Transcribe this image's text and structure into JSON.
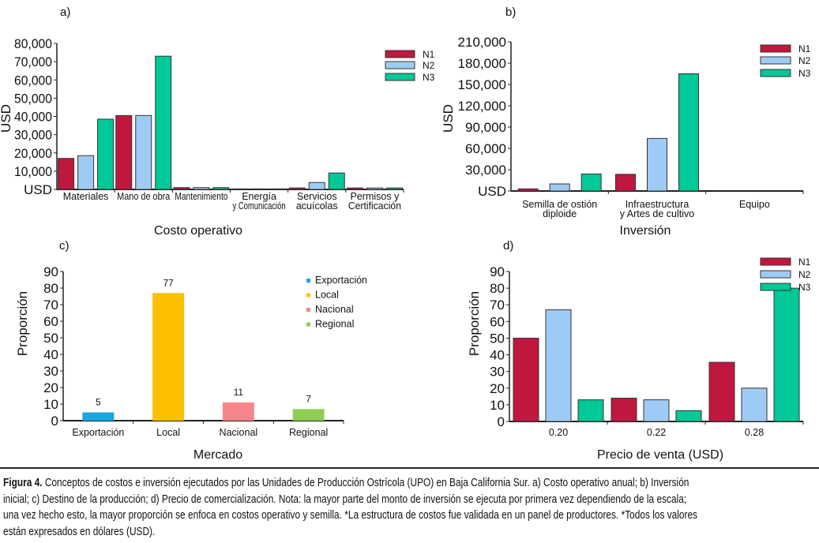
{
  "series_colors": {
    "N1": "#c0173f",
    "N2": "#9ecbf5",
    "N3": "#00c896"
  },
  "chart_data": [
    {
      "id": "a",
      "panel_label": "a)",
      "type": "bar",
      "title": "",
      "xlabel": "Costo operativo",
      "ylabel": "USD",
      "ylim": [
        0,
        80000
      ],
      "yticks": [
        "USD",
        "10,000",
        "20,000",
        "30,000",
        "40,000",
        "50,000",
        "60,000",
        "70,000",
        "80,000"
      ],
      "categories": [
        [
          "Materiales"
        ],
        [
          "Mano de obra"
        ],
        [
          "Mantenimiento"
        ],
        [
          "Energía",
          "y Comunicación"
        ],
        [
          "Servicios",
          "acuícolas"
        ],
        [
          "Permisos y",
          "Certificación"
        ]
      ],
      "legend": "top-right",
      "series": [
        {
          "name": "N1",
          "values": [
            17000,
            40500,
            1000,
            300,
            800,
            800
          ]
        },
        {
          "name": "N2",
          "values": [
            18500,
            40500,
            1000,
            300,
            3800,
            800
          ]
        },
        {
          "name": "N3",
          "values": [
            38500,
            73000,
            1000,
            300,
            9000,
            800
          ]
        }
      ]
    },
    {
      "id": "b",
      "panel_label": "b)",
      "type": "bar",
      "title": "",
      "xlabel": "Inversión",
      "ylabel": "USD",
      "ylim": [
        0,
        210000
      ],
      "yticks": [
        "USD",
        "30,000",
        "60,000",
        "90,000",
        "120,000",
        "150,000",
        "180,000",
        "210,000"
      ],
      "categories": [
        [
          "Semilla de ostión",
          "diploide"
        ],
        [
          "Infraestructura",
          "y Artes de cultivo"
        ],
        [
          "Equipo"
        ]
      ],
      "legend": "top-right",
      "series": [
        {
          "name": "N1",
          "values": [
            3000,
            23500,
            0
          ]
        },
        {
          "name": "N2",
          "values": [
            10000,
            74000,
            0
          ]
        },
        {
          "name": "N3",
          "values": [
            24000,
            165000,
            0
          ]
        }
      ]
    },
    {
      "id": "c",
      "panel_label": "c)",
      "type": "bar",
      "title": "",
      "xlabel": "Mercado",
      "ylabel": "Proporción",
      "ylim": [
        0,
        90
      ],
      "yticks": [
        "0",
        "10",
        "20",
        "30",
        "40",
        "50",
        "60",
        "70",
        "80",
        "90"
      ],
      "categories": [
        [
          "Exportación"
        ],
        [
          "Local"
        ],
        [
          "Nacional"
        ],
        [
          "Regional"
        ]
      ],
      "values": [
        5,
        77,
        11,
        7
      ],
      "data_labels": [
        "5",
        "77",
        "11",
        "7"
      ],
      "colors": [
        "#1aa6e0",
        "#fbbf00",
        "#f7868a",
        "#8fcd52"
      ],
      "legend_entries": [
        "Exportación",
        "Local",
        "Nacional",
        "Regional"
      ],
      "legend": "top-right"
    },
    {
      "id": "d",
      "panel_label": "d)",
      "type": "bar",
      "title": "",
      "xlabel": "Precio de venta (USD)",
      "ylabel": "Proporción",
      "ylim": [
        0,
        90
      ],
      "yticks": [
        "0",
        "10",
        "20",
        "30",
        "40",
        "50",
        "60",
        "70",
        "80",
        "90"
      ],
      "categories": [
        [
          "0.20"
        ],
        [
          "0.22"
        ],
        [
          "0.28"
        ]
      ],
      "legend": "top-right",
      "series": [
        {
          "name": "N1",
          "values": [
            50,
            14,
            35.5
          ]
        },
        {
          "name": "N2",
          "values": [
            67,
            13,
            20
          ]
        },
        {
          "name": "N3",
          "values": [
            13,
            6.5,
            80
          ]
        }
      ]
    }
  ],
  "caption": {
    "label": "Figura 4.",
    "lines": [
      " Conceptos de costos e inversión ejecutados por las Unidades de Producción Ostrícola (UPO) en Baja California Sur. a) Costo operativo anual; b) Inversión",
      "inicial; c) Destino de la producción; d) Precio de comercialización. Nota: la mayor parte del monto de inversión se ejecuta por primera vez dependiendo de la escala;",
      "una vez hecho esto, la mayor proporción se enfoca en costos operativo y semilla. *La estructura de costos fue validada en un panel de productores. *Todos los valores",
      "están expresados en dólares (USD)."
    ]
  }
}
